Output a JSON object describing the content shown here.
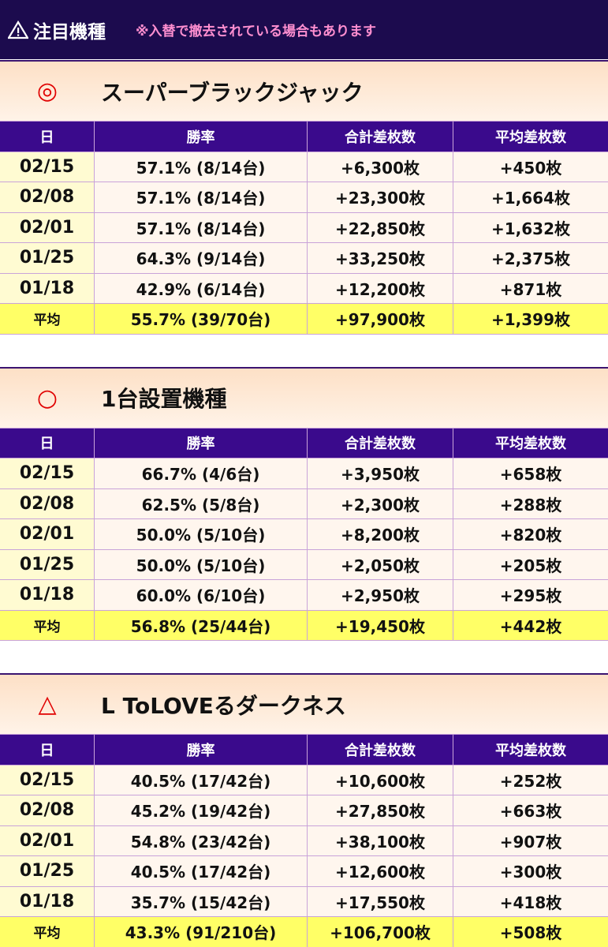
{
  "header": {
    "title": "注目機種",
    "note": "※入替で撤去されている場合もあります"
  },
  "sections": [
    {
      "mark": "◎",
      "title": "スーパーブラックジャック",
      "columns": [
        "日",
        "勝率",
        "合計差枚数",
        "平均差枚数"
      ],
      "rows": [
        [
          "02/15",
          "57.1% (8/14台)",
          "+6,300枚",
          "+450枚"
        ],
        [
          "02/08",
          "57.1% (8/14台)",
          "+23,300枚",
          "+1,664枚"
        ],
        [
          "02/01",
          "57.1% (8/14台)",
          "+22,850枚",
          "+1,632枚"
        ],
        [
          "01/25",
          "64.3% (9/14台)",
          "+33,250枚",
          "+2,375枚"
        ],
        [
          "01/18",
          "42.9% (6/14台)",
          "+12,200枚",
          "+871枚"
        ]
      ],
      "average": [
        "平均",
        "55.7% (39/70台)",
        "+97,900枚",
        "+1,399枚"
      ]
    },
    {
      "mark": "○",
      "title": "1台設置機種",
      "columns": [
        "日",
        "勝率",
        "合計差枚数",
        "平均差枚数"
      ],
      "rows": [
        [
          "02/15",
          "66.7% (4/6台)",
          "+3,950枚",
          "+658枚"
        ],
        [
          "02/08",
          "62.5% (5/8台)",
          "+2,300枚",
          "+288枚"
        ],
        [
          "02/01",
          "50.0% (5/10台)",
          "+8,200枚",
          "+820枚"
        ],
        [
          "01/25",
          "50.0% (5/10台)",
          "+2,050枚",
          "+205枚"
        ],
        [
          "01/18",
          "60.0% (6/10台)",
          "+2,950枚",
          "+295枚"
        ]
      ],
      "average": [
        "平均",
        "56.8% (25/44台)",
        "+19,450枚",
        "+442枚"
      ]
    },
    {
      "mark": "△",
      "title": "L ToLOVEるダークネス",
      "columns": [
        "日",
        "勝率",
        "合計差枚数",
        "平均差枚数"
      ],
      "rows": [
        [
          "02/15",
          "40.5% (17/42台)",
          "+10,600枚",
          "+252枚"
        ],
        [
          "02/08",
          "45.2% (19/42台)",
          "+27,850枚",
          "+663枚"
        ],
        [
          "02/01",
          "54.8% (23/42台)",
          "+38,100枚",
          "+907枚"
        ],
        [
          "01/25",
          "40.5% (17/42台)",
          "+12,600枚",
          "+300枚"
        ],
        [
          "01/18",
          "35.7% (15/42台)",
          "+17,550枚",
          "+418枚"
        ]
      ],
      "average": [
        "平均",
        "43.3% (91/210台)",
        "+106,700枚",
        "+508枚"
      ]
    }
  ]
}
